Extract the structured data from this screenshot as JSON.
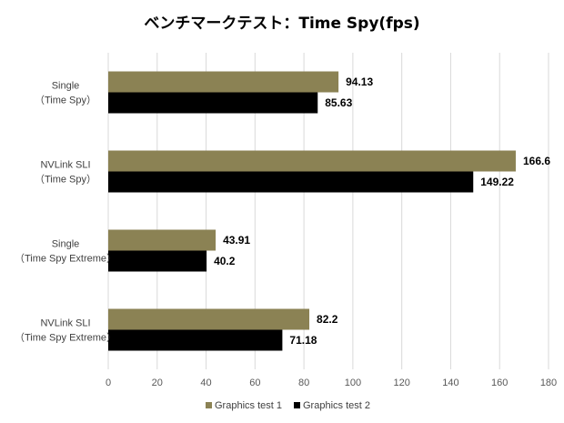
{
  "chart_data": {
    "type": "bar",
    "orientation": "horizontal",
    "title": "ベンチマークテスト：Time Spy(fps)",
    "categories": [
      [
        "Single",
        "（Time Spy）"
      ],
      [
        "NVLink SLI",
        "（Time Spy）"
      ],
      [
        "Single",
        "（Time Spy Extreme）"
      ],
      [
        "NVLink SLI",
        "（Time Spy Extreme）"
      ]
    ],
    "series": [
      {
        "name": "Graphics test 1",
        "color": "#8b8254",
        "values": [
          94.13,
          166.6,
          43.91,
          82.2
        ]
      },
      {
        "name": "Graphics test 2",
        "color": "#000000",
        "values": [
          85.63,
          149.22,
          40.2,
          71.18
        ]
      }
    ],
    "xlim": [
      0,
      180
    ],
    "xticks": [
      0,
      20,
      40,
      60,
      80,
      100,
      120,
      140,
      160,
      180
    ],
    "grid": true,
    "legend": "bottom"
  }
}
